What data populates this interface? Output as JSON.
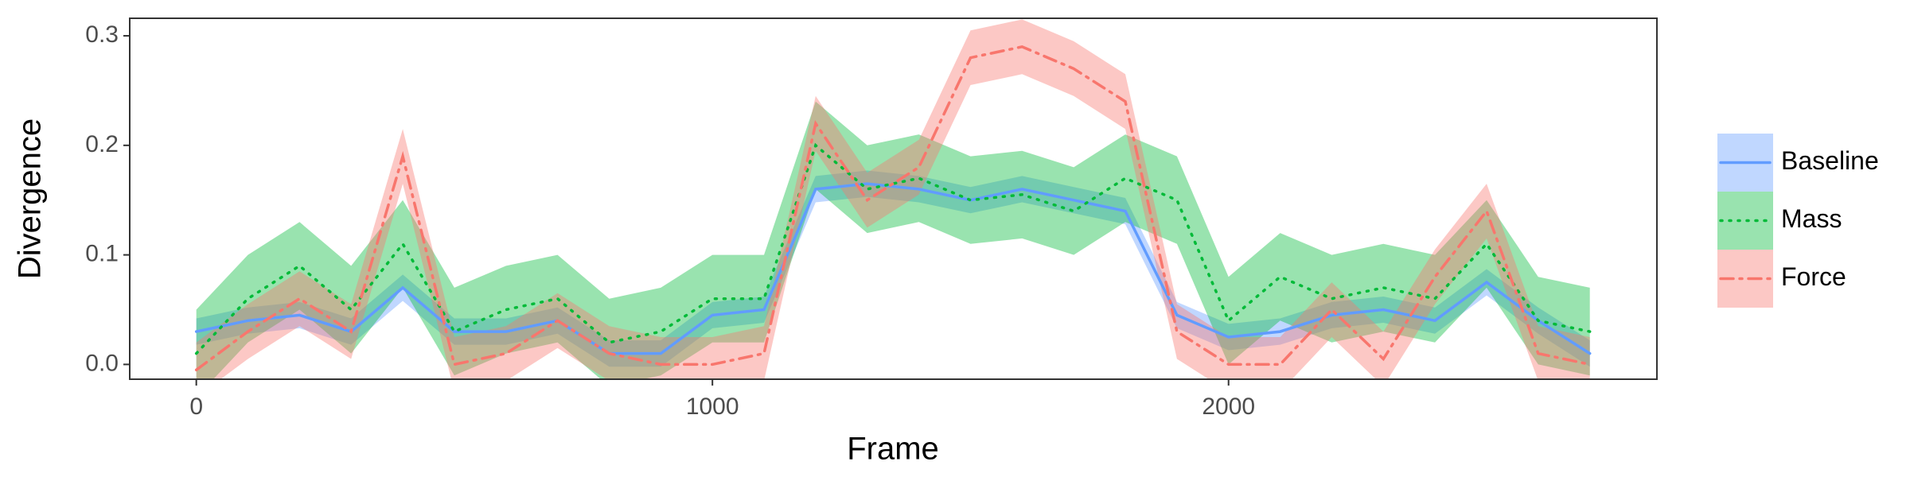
{
  "chart_data": {
    "type": "line",
    "x_label": "Frame",
    "y_label": "Divergence",
    "x": [
      0,
      100,
      200,
      300,
      400,
      500,
      600,
      700,
      800,
      900,
      1000,
      1100,
      1200,
      1300,
      1400,
      1500,
      1600,
      1700,
      1800,
      1900,
      2000,
      2100,
      2200,
      2300,
      2400,
      2500,
      2600,
      2700
    ],
    "xlim": [
      -129,
      2830
    ],
    "xticks": [
      0,
      1000,
      2000
    ],
    "ylim": [
      -0.0135,
      0.316
    ],
    "yticks": [
      {
        "value": 0,
        "label": "0.0"
      },
      {
        "value": 0.1,
        "label": "0.1"
      },
      {
        "value": 0.2,
        "label": "0.2"
      },
      {
        "value": 0.3,
        "label": "0.3"
      }
    ],
    "grid": false,
    "legend": "right",
    "series": [
      {
        "name": "Baseline",
        "color": "#619cff",
        "linestyle": "solid",
        "values": [
          0.03,
          0.04,
          0.045,
          0.03,
          0.07,
          0.03,
          0.03,
          0.04,
          0.01,
          0.01,
          0.045,
          0.05,
          0.16,
          0.165,
          0.16,
          0.15,
          0.16,
          0.15,
          0.14,
          0.045,
          0.025,
          0.03,
          0.045,
          0.05,
          0.04,
          0.075,
          0.04,
          0.01
        ],
        "lower": [
          0.018,
          0.028,
          0.033,
          0.018,
          0.058,
          0.018,
          0.018,
          0.028,
          -0.002,
          -0.002,
          0.033,
          0.038,
          0.148,
          0.153,
          0.148,
          0.138,
          0.148,
          0.138,
          0.128,
          0.033,
          0.013,
          0.018,
          0.033,
          0.038,
          0.028,
          0.063,
          0.028,
          -0.002
        ],
        "upper": [
          0.042,
          0.052,
          0.057,
          0.042,
          0.082,
          0.042,
          0.042,
          0.052,
          0.022,
          0.022,
          0.057,
          0.062,
          0.172,
          0.177,
          0.172,
          0.162,
          0.172,
          0.162,
          0.152,
          0.057,
          0.037,
          0.042,
          0.057,
          0.062,
          0.052,
          0.087,
          0.052,
          0.022
        ]
      },
      {
        "name": "Mass",
        "color": "#00ba38",
        "linestyle": "dotted",
        "values": [
          0.01,
          0.06,
          0.09,
          0.05,
          0.11,
          0.03,
          0.05,
          0.06,
          0.02,
          0.03,
          0.06,
          0.06,
          0.2,
          0.16,
          0.17,
          0.15,
          0.155,
          0.14,
          0.17,
          0.15,
          0.04,
          0.08,
          0.06,
          0.07,
          0.06,
          0.11,
          0.04,
          0.03
        ],
        "lower": [
          -0.03,
          0.02,
          0.05,
          0.01,
          0.07,
          -0.01,
          0.01,
          0.02,
          -0.02,
          -0.01,
          0.02,
          0.02,
          0.16,
          0.12,
          0.13,
          0.11,
          0.115,
          0.1,
          0.13,
          0.11,
          0,
          0.04,
          0.02,
          0.03,
          0.02,
          0.07,
          0,
          -0.01
        ],
        "upper": [
          0.05,
          0.1,
          0.13,
          0.09,
          0.15,
          0.07,
          0.09,
          0.1,
          0.06,
          0.07,
          0.1,
          0.1,
          0.24,
          0.2,
          0.21,
          0.19,
          0.195,
          0.18,
          0.21,
          0.19,
          0.08,
          0.12,
          0.1,
          0.11,
          0.1,
          0.15,
          0.08,
          0.07
        ]
      },
      {
        "name": "Force",
        "color": "#f8766d",
        "linestyle": "dashdot",
        "values": [
          -0.005,
          0.03,
          0.06,
          0.03,
          0.19,
          0,
          0.01,
          0.04,
          0.01,
          0,
          0,
          0.01,
          0.22,
          0.15,
          0.18,
          0.28,
          0.29,
          0.27,
          0.24,
          0.03,
          0,
          0,
          0.05,
          0.005,
          0.08,
          0.14,
          0.01,
          0
        ],
        "lower": [
          -0.03,
          0.005,
          0.035,
          0.005,
          0.165,
          -0.025,
          -0.015,
          0.015,
          -0.015,
          -0.025,
          -0.025,
          -0.015,
          0.195,
          0.125,
          0.155,
          0.255,
          0.265,
          0.245,
          0.215,
          0.005,
          -0.025,
          -0.025,
          0.025,
          -0.02,
          0.055,
          0.115,
          -0.015,
          -0.025
        ],
        "upper": [
          0.02,
          0.055,
          0.085,
          0.055,
          0.215,
          0.025,
          0.035,
          0.065,
          0.035,
          0.025,
          0.025,
          0.035,
          0.245,
          0.175,
          0.205,
          0.305,
          0.315,
          0.295,
          0.265,
          0.055,
          0.025,
          0.025,
          0.075,
          0.03,
          0.105,
          0.165,
          0.035,
          0.025
        ]
      }
    ]
  }
}
